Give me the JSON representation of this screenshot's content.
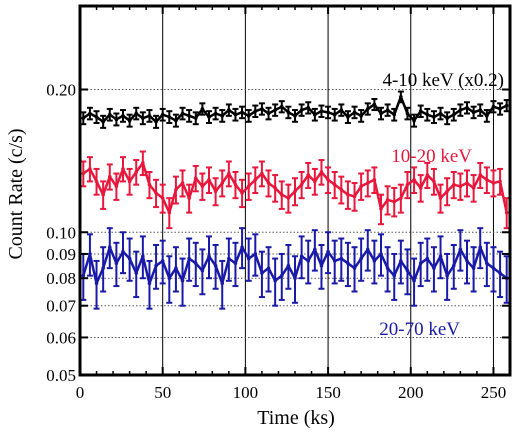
{
  "chart_data": {
    "type": "line",
    "xlabel": "Time (ks)",
    "ylabel": "Count Rate (c/s)",
    "xlim": [
      0,
      260
    ],
    "ylim": [
      0.05,
      0.3
    ],
    "yscale": "log",
    "x_ticks": [
      0,
      50,
      100,
      150,
      200,
      250
    ],
    "x_tick_labels": [
      "0",
      "50",
      "100",
      "150",
      "200",
      "250"
    ],
    "y_ticks": [
      0.05,
      0.06,
      0.07,
      0.08,
      0.09,
      0.1,
      0.2
    ],
    "y_tick_labels": [
      "0.05",
      "0.06",
      "0.07",
      "0.08",
      "0.09",
      "0.10",
      "0.20"
    ],
    "x_grid": [
      50,
      100,
      150,
      200,
      250
    ],
    "y_grid": [
      0.06,
      0.07,
      0.08,
      0.09,
      0.1,
      0.2
    ],
    "grid": true,
    "x": [
      2,
      6,
      10,
      14,
      18,
      22,
      26,
      30,
      34,
      38,
      42,
      46,
      50,
      54,
      58,
      62,
      66,
      70,
      74,
      78,
      82,
      86,
      90,
      94,
      98,
      102,
      106,
      110,
      114,
      118,
      122,
      126,
      130,
      134,
      138,
      142,
      146,
      150,
      154,
      158,
      162,
      166,
      170,
      174,
      178,
      182,
      186,
      190,
      194,
      198,
      202,
      206,
      210,
      214,
      218,
      222,
      226,
      230,
      234,
      238,
      242,
      246,
      250,
      254,
      258
    ],
    "series": [
      {
        "name": "4-10 keV (x0.2)",
        "color": "#000000",
        "values": [
          0.174,
          0.178,
          0.175,
          0.171,
          0.177,
          0.173,
          0.176,
          0.172,
          0.178,
          0.174,
          0.176,
          0.171,
          0.177,
          0.175,
          0.172,
          0.178,
          0.176,
          0.174,
          0.182,
          0.175,
          0.178,
          0.176,
          0.181,
          0.177,
          0.179,
          0.176,
          0.18,
          0.182,
          0.178,
          0.181,
          0.184,
          0.179,
          0.176,
          0.181,
          0.183,
          0.177,
          0.18,
          0.179,
          0.177,
          0.181,
          0.175,
          0.179,
          0.176,
          0.182,
          0.186,
          0.178,
          0.181,
          0.177,
          0.193,
          0.178,
          0.172,
          0.18,
          0.177,
          0.175,
          0.178,
          0.174,
          0.177,
          0.181,
          0.183,
          0.179,
          0.181,
          0.176,
          0.184,
          0.182,
          0.185
        ],
        "errors": [
          0.005,
          0.005,
          0.005,
          0.005,
          0.005,
          0.005,
          0.005,
          0.005,
          0.005,
          0.005,
          0.005,
          0.005,
          0.005,
          0.005,
          0.005,
          0.005,
          0.005,
          0.005,
          0.005,
          0.005,
          0.005,
          0.005,
          0.005,
          0.005,
          0.005,
          0.005,
          0.005,
          0.005,
          0.005,
          0.005,
          0.005,
          0.005,
          0.005,
          0.005,
          0.005,
          0.005,
          0.005,
          0.005,
          0.005,
          0.005,
          0.005,
          0.005,
          0.005,
          0.005,
          0.005,
          0.005,
          0.005,
          0.005,
          0.005,
          0.005,
          0.005,
          0.005,
          0.005,
          0.005,
          0.005,
          0.005,
          0.005,
          0.005,
          0.005,
          0.005,
          0.005,
          0.005,
          0.005,
          0.005,
          0.005
        ]
      },
      {
        "name": "10-20 keV",
        "color": "#e8173c",
        "values": [
          0.133,
          0.136,
          0.128,
          0.12,
          0.131,
          0.125,
          0.136,
          0.128,
          0.134,
          0.14,
          0.126,
          0.121,
          0.118,
          0.11,
          0.123,
          0.127,
          0.118,
          0.13,
          0.125,
          0.129,
          0.122,
          0.127,
          0.133,
          0.126,
          0.121,
          0.125,
          0.129,
          0.133,
          0.127,
          0.124,
          0.12,
          0.118,
          0.122,
          0.126,
          0.132,
          0.128,
          0.134,
          0.129,
          0.126,
          0.123,
          0.12,
          0.119,
          0.125,
          0.127,
          0.129,
          0.112,
          0.117,
          0.116,
          0.118,
          0.126,
          0.129,
          0.124,
          0.132,
          0.128,
          0.118,
          0.122,
          0.126,
          0.125,
          0.127,
          0.124,
          0.132,
          0.129,
          0.127,
          0.128,
          0.11
        ],
        "errors": [
          0.008,
          0.008,
          0.008,
          0.008,
          0.008,
          0.008,
          0.008,
          0.008,
          0.008,
          0.008,
          0.008,
          0.008,
          0.008,
          0.008,
          0.008,
          0.008,
          0.008,
          0.008,
          0.008,
          0.008,
          0.008,
          0.008,
          0.008,
          0.008,
          0.008,
          0.008,
          0.008,
          0.008,
          0.008,
          0.008,
          0.008,
          0.008,
          0.008,
          0.008,
          0.008,
          0.008,
          0.008,
          0.008,
          0.008,
          0.008,
          0.008,
          0.008,
          0.008,
          0.008,
          0.008,
          0.008,
          0.008,
          0.008,
          0.008,
          0.008,
          0.008,
          0.008,
          0.008,
          0.008,
          0.008,
          0.008,
          0.008,
          0.008,
          0.008,
          0.008,
          0.008,
          0.008,
          0.008,
          0.008,
          0.008
        ]
      },
      {
        "name": "20-70 keV",
        "color": "#1a1aa8",
        "values": [
          0.081,
          0.09,
          0.078,
          0.084,
          0.093,
          0.086,
          0.091,
          0.088,
          0.082,
          0.089,
          0.078,
          0.085,
          0.087,
          0.08,
          0.084,
          0.079,
          0.088,
          0.086,
          0.083,
          0.089,
          0.085,
          0.078,
          0.088,
          0.086,
          0.093,
          0.088,
          0.09,
          0.082,
          0.084,
          0.079,
          0.081,
          0.085,
          0.08,
          0.089,
          0.087,
          0.092,
          0.085,
          0.091,
          0.087,
          0.088,
          0.086,
          0.084,
          0.088,
          0.092,
          0.087,
          0.09,
          0.084,
          0.081,
          0.087,
          0.083,
          0.079,
          0.086,
          0.088,
          0.084,
          0.089,
          0.081,
          0.085,
          0.092,
          0.087,
          0.084,
          0.093,
          0.086,
          0.084,
          0.082,
          0.08
        ],
        "errors": [
          0.009,
          0.009,
          0.009,
          0.009,
          0.009,
          0.009,
          0.009,
          0.009,
          0.009,
          0.009,
          0.009,
          0.009,
          0.009,
          0.009,
          0.009,
          0.009,
          0.009,
          0.009,
          0.009,
          0.009,
          0.009,
          0.009,
          0.009,
          0.009,
          0.009,
          0.009,
          0.009,
          0.009,
          0.009,
          0.009,
          0.009,
          0.009,
          0.009,
          0.009,
          0.009,
          0.009,
          0.009,
          0.009,
          0.009,
          0.009,
          0.009,
          0.009,
          0.009,
          0.009,
          0.009,
          0.009,
          0.009,
          0.009,
          0.009,
          0.009,
          0.009,
          0.009,
          0.009,
          0.009,
          0.009,
          0.009,
          0.009,
          0.009,
          0.009,
          0.009,
          0.009,
          0.009,
          0.009,
          0.009,
          0.009
        ]
      }
    ]
  }
}
